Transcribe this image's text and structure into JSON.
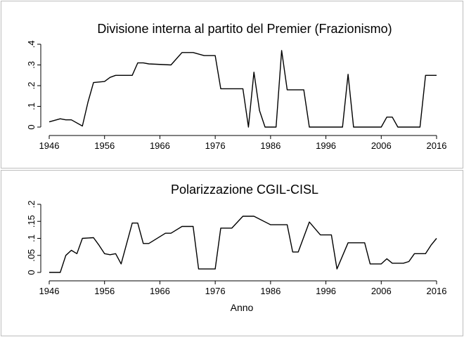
{
  "chart_data": [
    {
      "type": "line",
      "title": "Divisione interna al partito del Premier (Frazionismo)",
      "xlim": [
        1946,
        2016
      ],
      "xticks": [
        "1946",
        "1956",
        "1966",
        "1976",
        "1986",
        "1996",
        "2006",
        "2016"
      ],
      "ylim": [
        0,
        0.4
      ],
      "yticks": [
        "0",
        ".1",
        ".2",
        ".3",
        ".4"
      ],
      "x": [
        1946,
        1948,
        1949,
        1950,
        1952,
        1953,
        1954,
        1956,
        1957,
        1958,
        1961,
        1962,
        1963,
        1964,
        1968,
        1970,
        1972,
        1974,
        1976,
        1977,
        1981,
        1982,
        1983,
        1984,
        1985,
        1987,
        1988,
        1989,
        1992,
        1993,
        1995,
        1999,
        2000,
        2001,
        2005,
        2006,
        2007,
        2008,
        2009,
        2012,
        2013,
        2014,
        2016
      ],
      "values": [
        0.025,
        0.04,
        0.035,
        0.035,
        0.005,
        0.12,
        0.215,
        0.22,
        0.24,
        0.25,
        0.25,
        0.31,
        0.31,
        0.305,
        0.3,
        0.36,
        0.36,
        0.345,
        0.345,
        0.185,
        0.185,
        0.0,
        0.265,
        0.08,
        0.0,
        0.0,
        0.37,
        0.18,
        0.18,
        0.0,
        0.0,
        0.0,
        0.255,
        0.0,
        0.0,
        0.0,
        0.048,
        0.048,
        0.0,
        0.0,
        0.0,
        0.25,
        0.25
      ]
    },
    {
      "type": "line",
      "title": "Polarizzazione CGIL-CISL",
      "xlabel": "Anno",
      "xlim": [
        1946,
        2016
      ],
      "xticks": [
        "1946",
        "1956",
        "1966",
        "1976",
        "1986",
        "1996",
        "2006",
        "2016"
      ],
      "ylim": [
        0,
        0.2
      ],
      "yticks": [
        "0",
        ".05",
        ".1",
        ".15",
        ".2"
      ],
      "x": [
        1946,
        1948,
        1949,
        1950,
        1951,
        1952,
        1954,
        1955,
        1956,
        1957,
        1958,
        1959,
        1961,
        1962,
        1963,
        1964,
        1967,
        1968,
        1970,
        1972,
        1973,
        1976,
        1977,
        1979,
        1981,
        1983,
        1986,
        1987,
        1989,
        1990,
        1991,
        1993,
        1995,
        1997,
        1998,
        2000,
        2002,
        2003,
        2004,
        2005,
        2006,
        2007,
        2008,
        2009,
        2010,
        2011,
        2012,
        2014,
        2015,
        2016
      ],
      "values": [
        0.0,
        0.0,
        0.05,
        0.065,
        0.055,
        0.1,
        0.102,
        0.08,
        0.055,
        0.052,
        0.055,
        0.025,
        0.145,
        0.145,
        0.085,
        0.085,
        0.115,
        0.115,
        0.135,
        0.135,
        0.01,
        0.01,
        0.13,
        0.13,
        0.165,
        0.165,
        0.14,
        0.14,
        0.14,
        0.06,
        0.06,
        0.148,
        0.11,
        0.11,
        0.01,
        0.087,
        0.087,
        0.087,
        0.025,
        0.025,
        0.025,
        0.04,
        0.027,
        0.027,
        0.027,
        0.032,
        0.055,
        0.055,
        0.08,
        0.1
      ]
    }
  ]
}
